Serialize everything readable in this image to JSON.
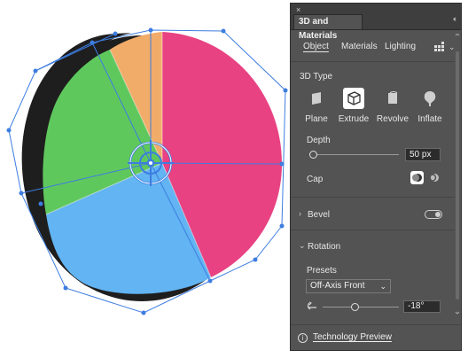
{
  "panel": {
    "title": "3D and Materials",
    "close_glyph": "×",
    "collapse_glyph": "‹‹",
    "tabs": [
      "Object",
      "Materials",
      "Lighting"
    ],
    "active_tab": "Object",
    "section_3d_type": "3D Type",
    "types": [
      {
        "label": "Plane",
        "icon": "plane-icon"
      },
      {
        "label": "Extrude",
        "icon": "extrude-icon",
        "selected": true
      },
      {
        "label": "Revolve",
        "icon": "revolve-icon"
      },
      {
        "label": "Inflate",
        "icon": "inflate-icon"
      }
    ],
    "depth_label": "Depth",
    "depth_value": "50 px",
    "depth_level": 0.0,
    "cap_label": "Cap",
    "bevel_label": "Bevel",
    "bevel_enabled": false,
    "rotation_label": "Rotation",
    "presets_label": "Presets",
    "preset_value": "Off-Axis Front",
    "rotation_value": "-18°",
    "footer_info_glyph": "i",
    "footer_link": "Technology Preview"
  },
  "canvas": {
    "slices": [
      {
        "name": "pink-slice",
        "color": "#e84282"
      },
      {
        "name": "blue-slice",
        "color": "#62b4f2"
      },
      {
        "name": "green-slice",
        "color": "#5fc85d"
      },
      {
        "name": "orange-slice",
        "color": "#f2ac6a"
      }
    ],
    "side_color": "#1e1e1e",
    "selection_color": "#3d7de0"
  },
  "colors": {
    "panel_bg": "#535353",
    "titlebar_bg": "#3e3e3e",
    "text": "#e6e6e6"
  }
}
